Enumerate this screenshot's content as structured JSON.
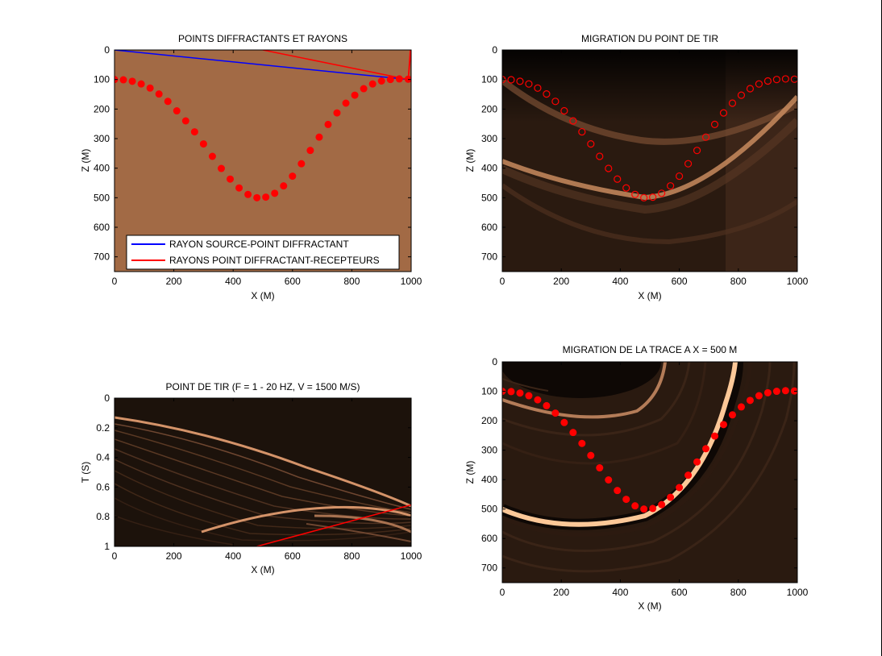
{
  "figure": {
    "panels": [
      {
        "title": "POINTS DIFFRACTANTS ET RAYONS",
        "xlabel": "X (M)",
        "ylabel": "Z (M)",
        "xticks": [
          "0",
          "200",
          "400",
          "600",
          "800",
          "1000"
        ],
        "yticks": [
          "0",
          "100",
          "200",
          "300",
          "400",
          "500",
          "600",
          "700"
        ],
        "legend": [
          "RAYON SOURCE-POINT DIFFRACTANT",
          "RAYONS POINT DIFFRACTANT-RECEPTEURS"
        ]
      },
      {
        "title": "MIGRATION DU POINT DE TIR",
        "xlabel": "X (M)",
        "ylabel": "Z (M)",
        "xticks": [
          "0",
          "200",
          "400",
          "600",
          "800",
          "1000"
        ],
        "yticks": [
          "0",
          "100",
          "200",
          "300",
          "400",
          "500",
          "600",
          "700"
        ]
      },
      {
        "title": "POINT DE TIR (F = 1 - 20 HZ, V = 1500 M/S)",
        "xlabel": "X (M)",
        "ylabel": "T (S)",
        "xticks": [
          "0",
          "200",
          "400",
          "600",
          "800",
          "1000"
        ],
        "yticks": [
          "0",
          "0.2",
          "0.4",
          "0.6",
          "0.8",
          "1"
        ]
      },
      {
        "title": "MIGRATION DE LA TRACE A X = 500 M",
        "xlabel": "X (M)",
        "ylabel": "Z (M)",
        "xticks": [
          "0",
          "200",
          "400",
          "600",
          "800",
          "1000"
        ],
        "yticks": [
          "0",
          "100",
          "200",
          "300",
          "400",
          "500",
          "600",
          "700"
        ]
      }
    ]
  },
  "chart_data": [
    {
      "type": "scatter",
      "title": "POINTS DIFFRACTANTS ET RAYONS",
      "xlabel": "X (M)",
      "ylabel": "Z (M)",
      "xlim": [
        0,
        1000
      ],
      "ylim": [
        750,
        0
      ],
      "background_color": "#a26a45",
      "legend_position": "bottom",
      "diffractors": {
        "x": [
          0,
          30,
          60,
          90,
          120,
          150,
          180,
          210,
          240,
          270,
          300,
          330,
          360,
          390,
          420,
          450,
          480,
          510,
          540,
          570,
          600,
          630,
          660,
          690,
          720,
          750,
          780,
          810,
          840,
          870,
          900,
          930,
          960,
          990
        ],
        "z": [
          100,
          101,
          106,
          115,
          129,
          149,
          174,
          206,
          240,
          277,
          318,
          360,
          401,
          437,
          467,
          489,
          500,
          498,
          485,
          460,
          427,
          385,
          340,
          295,
          252,
          213,
          180,
          153,
          131,
          115,
          105,
          100,
          98,
          99
        ],
        "marker": "filled-circle",
        "color": "#ff0000"
      },
      "series": [
        {
          "name": "RAYON SOURCE-POINT DIFFRACTANT",
          "color": "#0000ff",
          "x": [
            0,
            990
          ],
          "z": [
            0,
            100
          ]
        },
        {
          "name": "RAYONS POINT DIFFRACTANT-RECEPTEURS",
          "color": "#ff0000",
          "segments": [
            {
              "x": [
                990,
                500
              ],
              "z": [
                100,
                0
              ]
            },
            {
              "x": [
                990,
                1000
              ],
              "z": [
                100,
                0
              ]
            },
            {
              "x": [
                990,
                997
              ],
              "z": [
                100,
                0
              ]
            }
          ]
        }
      ]
    },
    {
      "type": "heatmap",
      "title": "MIGRATION DU POINT DE TIR",
      "xlabel": "X (M)",
      "ylabel": "Z (M)",
      "xlim": [
        0,
        1000
      ],
      "ylim": [
        750,
        0
      ],
      "colormap": "copper",
      "overlay": {
        "marker": "open-circle",
        "color": "#ff0000",
        "x": [
          0,
          30,
          60,
          90,
          120,
          150,
          180,
          210,
          240,
          270,
          300,
          330,
          360,
          390,
          420,
          450,
          480,
          510,
          540,
          570,
          600,
          630,
          660,
          690,
          720,
          750,
          780,
          810,
          840,
          870,
          900,
          930,
          960,
          990
        ],
        "z": [
          100,
          101,
          106,
          115,
          129,
          149,
          174,
          206,
          240,
          277,
          318,
          360,
          401,
          437,
          467,
          489,
          500,
          498,
          485,
          460,
          427,
          385,
          340,
          295,
          252,
          213,
          180,
          153,
          131,
          115,
          105,
          100,
          98,
          99
        ]
      }
    },
    {
      "type": "heatmap",
      "title": "POINT DE TIR (F = 1 - 20 HZ, V = 1500 M/S)",
      "xlabel": "X (M)",
      "ylabel": "T (S)",
      "xlim": [
        0,
        1000
      ],
      "ylim": [
        1,
        0
      ],
      "colormap": "copper",
      "overlay": {
        "color": "#ff0000",
        "x": [
          480,
          1000
        ],
        "t": [
          1.0,
          0.72
        ]
      }
    },
    {
      "type": "heatmap",
      "title": "MIGRATION DE LA TRACE A X = 500 M",
      "xlabel": "X (M)",
      "ylabel": "Z (M)",
      "xlim": [
        0,
        1000
      ],
      "ylim": [
        750,
        0
      ],
      "colormap": "copper",
      "overlay": {
        "marker": "filled-circle",
        "color": "#ff0000",
        "x": [
          0,
          30,
          60,
          90,
          120,
          150,
          180,
          210,
          240,
          270,
          300,
          330,
          360,
          390,
          420,
          450,
          480,
          510,
          540,
          570,
          600,
          630,
          660,
          690,
          720,
          750,
          780,
          810,
          840,
          870,
          900,
          930,
          960,
          990
        ],
        "z": [
          100,
          101,
          106,
          115,
          129,
          149,
          174,
          206,
          240,
          277,
          318,
          360,
          401,
          437,
          467,
          489,
          500,
          498,
          485,
          460,
          427,
          385,
          340,
          295,
          252,
          213,
          180,
          153,
          131,
          115,
          105,
          100,
          98,
          99
        ]
      }
    }
  ]
}
